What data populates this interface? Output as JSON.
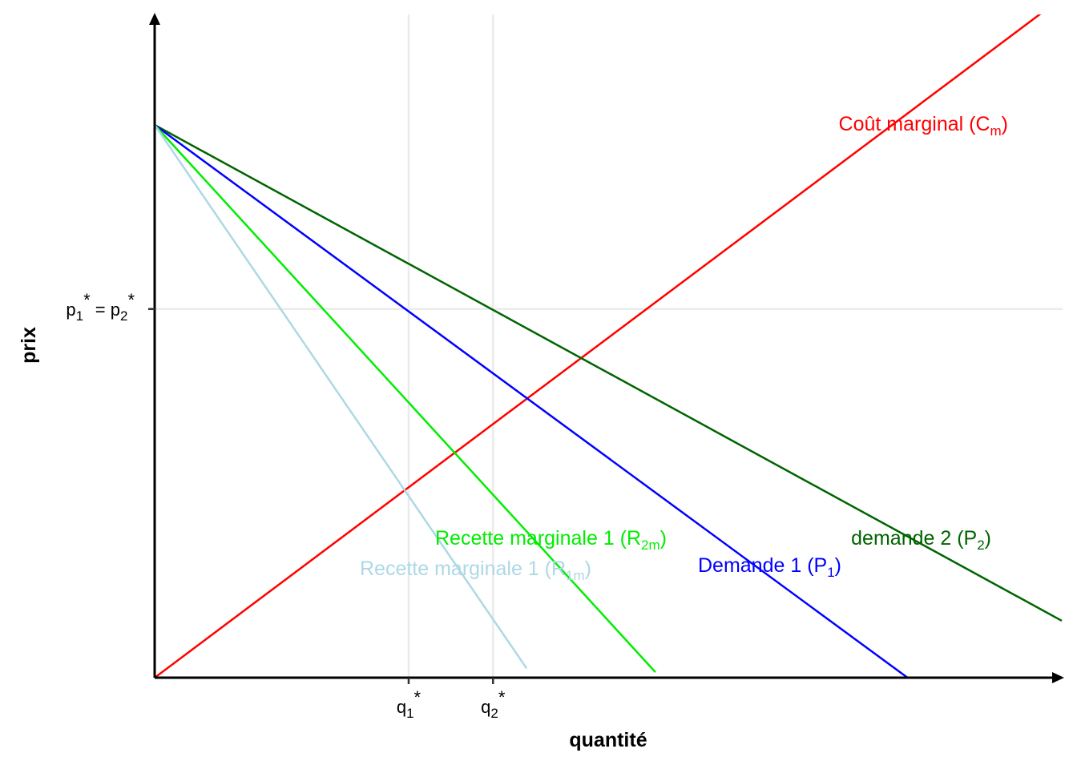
{
  "chart_data": {
    "type": "line",
    "title": "",
    "xlabel": "quantité",
    "ylabel": "prix",
    "xlim": [
      0,
      10
    ],
    "ylim": [
      0,
      10
    ],
    "grid": "major only at marked ticks",
    "colors": {
      "marginal_cost": "#ff0000",
      "demand_1": "#0000ff",
      "demand_2": "#006400",
      "marginal_revenue_2": "#00ee00",
      "marginal_revenue_1": "#add8e6",
      "grid": "#ebebeb",
      "axis": "#000000"
    },
    "x_ticks": [
      {
        "value": 2.8,
        "base": "q",
        "sub": "1",
        "sup": "*"
      },
      {
        "value": 3.73,
        "base": "q",
        "sub": "2",
        "sup": "*"
      }
    ],
    "y_ticks": [
      {
        "value": 6.67,
        "parts": [
          {
            "base": "p",
            "sub": "1",
            "sup": "*"
          },
          {
            "base": " = p",
            "sub": "2",
            "sup": "*"
          }
        ]
      }
    ],
    "series": [
      {
        "key": "marginal_cost",
        "x": [
          0,
          10
        ],
        "y": [
          0,
          12.3
        ],
        "label": {
          "pre": "Coût marginal (C",
          "sub": "m",
          "post": ")"
        }
      },
      {
        "key": "demand_2",
        "x": [
          0,
          10
        ],
        "y": [
          10,
          1.03
        ],
        "label": {
          "pre": "demande 2 (P",
          "sub": "2",
          "post": ")"
        }
      },
      {
        "key": "demand_1",
        "x": [
          0,
          8.3
        ],
        "y": [
          10,
          0
        ],
        "label": {
          "pre": "Demande 1 (P",
          "sub": "1",
          "post": ")"
        }
      },
      {
        "key": "marginal_revenue_2",
        "x": [
          0,
          5.52
        ],
        "y": [
          10,
          0.1
        ],
        "label": {
          "pre": "Recette marginale 1 (R",
          "sub": "2m",
          "post": ")"
        }
      },
      {
        "key": "marginal_revenue_1",
        "x": [
          0,
          4.1
        ],
        "y": [
          10,
          0.17
        ],
        "label": {
          "pre": "Recette marginale 1 (R",
          "sub": "1m",
          "post": ")"
        }
      }
    ]
  }
}
